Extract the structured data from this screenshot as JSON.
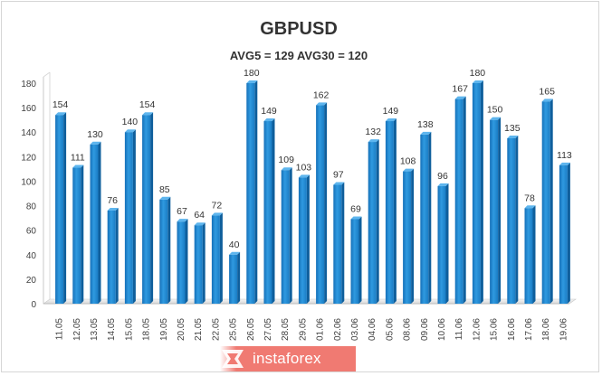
{
  "chart_data": {
    "type": "bar",
    "title": "GBPUSD",
    "subtitle": "AVG5 = 129 AVG30 = 120",
    "xlabel": "",
    "ylabel": "",
    "ylim": [
      0,
      180
    ],
    "yticks": [
      0,
      20,
      40,
      60,
      80,
      100,
      120,
      140,
      160,
      180
    ],
    "grid": false,
    "legend": "none",
    "bar_color": "#1f8fd6",
    "categories": [
      "11.05",
      "12.05",
      "13.05",
      "14.05",
      "15.05",
      "18.05",
      "19.05",
      "20.05",
      "21.05",
      "22.05",
      "25.05",
      "26.05",
      "27.05",
      "28.05",
      "29.05",
      "01.06",
      "02.06",
      "03.06",
      "04.06",
      "05.06",
      "08.06",
      "09.06",
      "10.06",
      "11.06",
      "12.06",
      "15.06",
      "16.06",
      "17.06",
      "18.06",
      "19.06"
    ],
    "values": [
      154,
      111,
      130,
      76,
      140,
      154,
      85,
      67,
      64,
      72,
      40,
      180,
      149,
      109,
      103,
      162,
      97,
      69,
      132,
      149,
      108,
      138,
      96,
      167,
      180,
      150,
      135,
      78,
      165,
      113
    ]
  },
  "watermark": {
    "text": "instaforex",
    "bg_color": "#f07a72"
  }
}
